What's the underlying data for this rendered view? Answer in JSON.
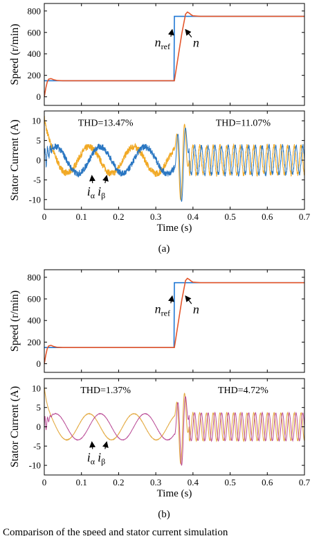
{
  "figure": {
    "caption_visible": "Comparison of the speed and stator current simulation",
    "panel_labels": [
      "(a)",
      "(b)"
    ]
  },
  "colors": {
    "speed_ref": "#1f77d4",
    "speed": "#e4552a",
    "a_i_alpha": "#f0a419",
    "a_i_beta": "#1e6fbf",
    "b_i_alpha": "#e3a63a",
    "b_i_beta": "#b5408f",
    "arrow": "#000000"
  },
  "chart_data": [
    {
      "panel": "(a)",
      "type": "line",
      "ylabel": "Speed (r/min)",
      "xlabel": "",
      "xlim": [
        0,
        0.7
      ],
      "ylim": [
        -80,
        870
      ],
      "xticks": [],
      "xtick_labels": [],
      "yticks": [
        0,
        200,
        400,
        600,
        800
      ],
      "ytick_labels": [
        "0",
        "200",
        "400",
        "600",
        "800"
      ],
      "step_time": 0.35,
      "series": [
        {
          "name": "n_ref",
          "symbol": "n",
          "sub": "ref",
          "color_key": "speed_ref",
          "x": [
            0,
            0.349,
            0.35,
            0.7
          ],
          "y": [
            150,
            150,
            750,
            750
          ]
        },
        {
          "name": "n",
          "symbol": "n",
          "sub": "",
          "color_key": "speed",
          "x": [
            0,
            0.004,
            0.008,
            0.012,
            0.018,
            0.025,
            0.035,
            0.05,
            0.35,
            0.36,
            0.37,
            0.38,
            0.385,
            0.39,
            0.395,
            0.4,
            0.42,
            0.7
          ],
          "y": [
            0,
            80,
            140,
            165,
            170,
            160,
            152,
            150,
            150,
            370,
            590,
            770,
            790,
            780,
            765,
            755,
            750,
            750
          ]
        }
      ],
      "annotations": [
        {
          "text": "n_ref",
          "symbol": "n",
          "sub": "ref",
          "x": 0.318,
          "y": 470,
          "arrow_to": [
            0.348,
            640
          ]
        },
        {
          "text": "n",
          "symbol": "n",
          "sub": "",
          "x": 0.4,
          "y": 465,
          "arrow_to": [
            0.376,
            640
          ]
        }
      ]
    },
    {
      "panel": "(a)",
      "type": "line",
      "ylabel": "Stator Current (A)",
      "xlabel": "Time (s)",
      "xlim": [
        0,
        0.7
      ],
      "ylim": [
        -12.5,
        12.5
      ],
      "xticks": [
        0,
        0.1,
        0.2,
        0.3,
        0.4,
        0.5,
        0.6,
        0.7
      ],
      "xtick_labels": [
        "0",
        "0.1",
        "0.2",
        "0.3",
        "0.4",
        "0.5",
        "0.6",
        "0.7"
      ],
      "yticks": [
        -10,
        -5,
        0,
        5,
        10
      ],
      "ytick_labels": [
        "-10",
        "-5",
        "0",
        "5",
        "10"
      ],
      "steady1": {
        "t_start": 0.02,
        "t_end": 0.35,
        "freq_hz": 8.3,
        "amp": 3.4,
        "ripple": 0.85
      },
      "transient": {
        "t_start": 0.35,
        "t_end": 0.39,
        "peak": 10.5
      },
      "steady2": {
        "t_start": 0.39,
        "t_end": 0.7,
        "freq_hz": 55,
        "amp": 3.6,
        "ripple": 0.55
      },
      "startup": {
        "peak": 10.5,
        "decay_s": 0.012
      },
      "series": [
        {
          "name": "i_α",
          "symbol": "i",
          "sub": "α",
          "phase_deg": 0,
          "color_key": "a_i_alpha"
        },
        {
          "name": "i_β",
          "symbol": "i",
          "sub": "β",
          "phase_deg": -90,
          "color_key": "a_i_beta"
        }
      ],
      "annotations": [
        {
          "text": "THD=13.47%",
          "x": 0.165,
          "y": 8.7
        },
        {
          "text": "THD=11.07%",
          "x": 0.535,
          "y": 8.7
        },
        {
          "text": "i_α i_β",
          "x": 0.115,
          "y": -9.0,
          "arrows": [
            [
              0.128,
              -3.9
            ],
            [
              0.168,
              -3.9
            ]
          ]
        }
      ]
    },
    {
      "panel": "(b)",
      "type": "line",
      "ylabel": "Speed (r/min)",
      "xlabel": "",
      "xlim": [
        0,
        0.7
      ],
      "ylim": [
        -80,
        870
      ],
      "xticks": [],
      "xtick_labels": [],
      "yticks": [
        0,
        200,
        400,
        600,
        800
      ],
      "ytick_labels": [
        "0",
        "200",
        "400",
        "600",
        "800"
      ],
      "step_time": 0.35,
      "series": [
        {
          "name": "n_ref",
          "symbol": "n",
          "sub": "ref",
          "color_key": "speed_ref",
          "x": [
            0,
            0.349,
            0.35,
            0.7
          ],
          "y": [
            150,
            150,
            750,
            750
          ]
        },
        {
          "name": "n",
          "symbol": "n",
          "sub": "",
          "color_key": "speed",
          "x": [
            0,
            0.004,
            0.008,
            0.012,
            0.018,
            0.025,
            0.035,
            0.05,
            0.35,
            0.36,
            0.37,
            0.38,
            0.385,
            0.39,
            0.395,
            0.4,
            0.42,
            0.7
          ],
          "y": [
            0,
            80,
            140,
            165,
            170,
            160,
            152,
            150,
            150,
            370,
            590,
            770,
            790,
            780,
            765,
            755,
            750,
            750
          ]
        }
      ],
      "annotations": [
        {
          "text": "n_ref",
          "symbol": "n",
          "sub": "ref",
          "x": 0.318,
          "y": 470,
          "arrow_to": [
            0.348,
            640
          ]
        },
        {
          "text": "n",
          "symbol": "n",
          "sub": "",
          "x": 0.4,
          "y": 465,
          "arrow_to": [
            0.376,
            640
          ]
        }
      ]
    },
    {
      "panel": "(b)",
      "type": "line",
      "ylabel": "Stator Current (A)",
      "xlabel": "Time (s)",
      "xlim": [
        0,
        0.7
      ],
      "ylim": [
        -12.5,
        12.5
      ],
      "xticks": [
        0,
        0.1,
        0.2,
        0.3,
        0.4,
        0.5,
        0.6,
        0.7
      ],
      "xtick_labels": [
        "0",
        "0.1",
        "0.2",
        "0.3",
        "0.4",
        "0.5",
        "0.6",
        "0.7"
      ],
      "yticks": [
        -10,
        -5,
        0,
        5,
        10
      ],
      "ytick_labels": [
        "-10",
        "-5",
        "0",
        "5",
        "10"
      ],
      "steady1": {
        "t_start": 0.02,
        "t_end": 0.35,
        "freq_hz": 8.3,
        "amp": 3.4,
        "ripple": 0.05
      },
      "transient": {
        "t_start": 0.35,
        "t_end": 0.39,
        "peak": 10.0
      },
      "steady2": {
        "t_start": 0.39,
        "t_end": 0.7,
        "freq_hz": 55,
        "amp": 3.6,
        "ripple": 0.1
      },
      "startup": {
        "peak": 10.0,
        "decay_s": 0.008
      },
      "series": [
        {
          "name": "i_α",
          "symbol": "i",
          "sub": "α",
          "phase_deg": 0,
          "color_key": "b_i_alpha"
        },
        {
          "name": "i_β",
          "symbol": "i",
          "sub": "β",
          "phase_deg": -90,
          "color_key": "b_i_beta"
        }
      ],
      "annotations": [
        {
          "text": "THD=1.37%",
          "x": 0.165,
          "y": 8.7
        },
        {
          "text": "THD=4.72%",
          "x": 0.535,
          "y": 8.7
        },
        {
          "text": "i_α i_β",
          "x": 0.115,
          "y": -9.0,
          "arrows": [
            [
              0.128,
              -3.9
            ],
            [
              0.168,
              -3.9
            ]
          ]
        }
      ]
    }
  ]
}
